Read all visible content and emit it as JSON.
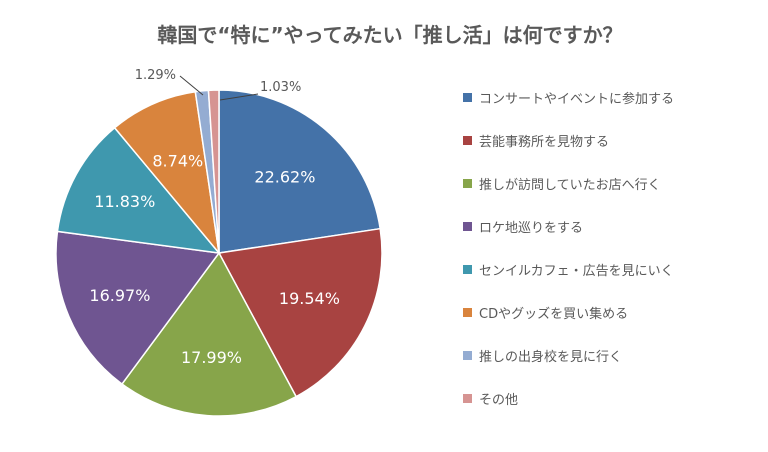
{
  "chart_data": {
    "type": "pie",
    "title": "韓国で“特に”やってみたい「推し活」は何ですか？",
    "legend_position": "right",
    "slices": [
      {
        "name": "コンサートやイベントに参加する",
        "value": 22.62,
        "label": "22.62%",
        "color": "#4472a8"
      },
      {
        "name": "芸能事務所を見物する",
        "value": 19.54,
        "label": "19.54%",
        "color": "#a84341"
      },
      {
        "name": "推しが訪問していたお店へ行く",
        "value": 17.99,
        "label": "17.99%",
        "color": "#87a54a"
      },
      {
        "name": "ロケ地巡りをする",
        "value": 16.97,
        "label": "16.97%",
        "color": "#6f5591"
      },
      {
        "name": "センイルカフェ・広告を見にいく",
        "value": 11.83,
        "label": "11.83%",
        "color": "#3f98ae"
      },
      {
        "name": "CDやグッズを買い集める",
        "value": 8.74,
        "label": "8.74%",
        "color": "#d9843d"
      },
      {
        "name": "推しの出身校を見に行く",
        "value": 1.29,
        "label": "1.29%",
        "color": "#94acd2"
      },
      {
        "name": "その他",
        "value": 1.03,
        "label": "1.03%",
        "color": "#d69492"
      }
    ]
  }
}
